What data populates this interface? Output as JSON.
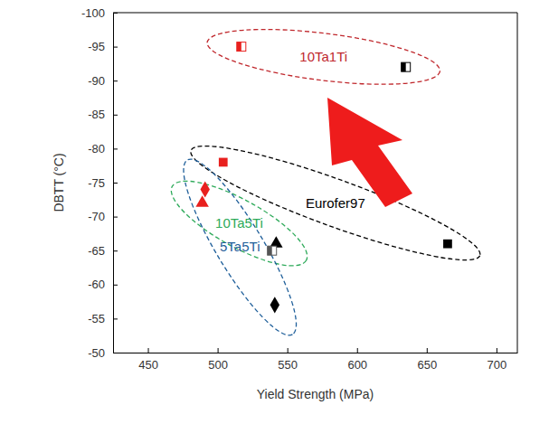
{
  "chart_data": {
    "type": "scatter",
    "x_label": "Yield Strength (MPa)",
    "y_label": "DBTT (°C)",
    "xlim": [
      425,
      715
    ],
    "xticks": [
      450,
      500,
      550,
      600,
      650,
      700
    ],
    "ylim": [
      -100,
      -50
    ],
    "yticks": [
      -100,
      -95,
      -90,
      -85,
      -80,
      -75,
      -70,
      -65,
      -60,
      -55,
      -50
    ],
    "series": [
      {
        "name": "10Ta1Ti",
        "color": "#c0282d",
        "marker": "half-square",
        "x": [
          517,
          635
        ],
        "values": [
          -95,
          -92
        ],
        "colors": [
          "#e8201e",
          "#000000"
        ]
      },
      {
        "name": "Eurofer97",
        "color": "#000000",
        "marker": "square",
        "x": [
          504,
          665
        ],
        "values": [
          -78,
          -66
        ],
        "colors": [
          "#e8201e",
          "#000000"
        ]
      },
      {
        "name": "10Ta5Ti",
        "color": "#2eaa5a",
        "marker": "triangle",
        "x": [
          489,
          542
        ],
        "values": [
          -72,
          -66
        ],
        "colors": [
          "#e8201e",
          "#000000"
        ]
      },
      {
        "name": "5Ta5Ti",
        "color": "#1f5f9a",
        "marker": "diamond",
        "x": [
          491,
          541
        ],
        "values": [
          -74,
          -57
        ],
        "colors": [
          "#e8201e",
          "#000000"
        ]
      },
      {
        "color": "#555555",
        "marker": "half-square",
        "x": [
          539
        ],
        "values": [
          -65
        ],
        "colors": [
          "#555555"
        ]
      }
    ]
  }
}
